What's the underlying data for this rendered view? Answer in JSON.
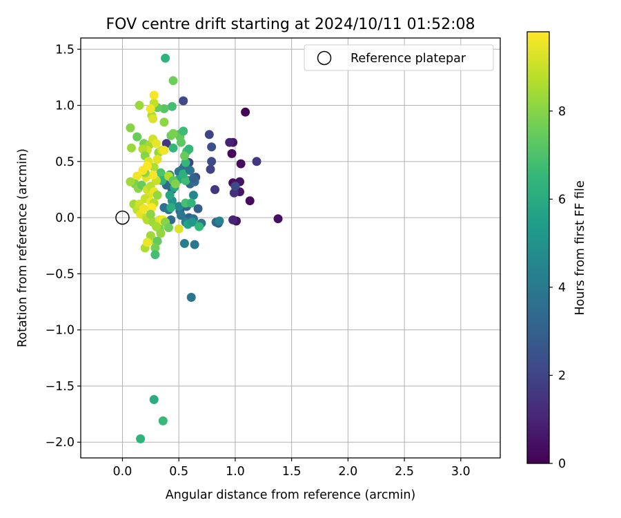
{
  "chart_data": {
    "type": "scatter",
    "title": "FOV centre drift starting at 2024/10/11 01:52:08",
    "xlabel": "Angular distance from reference (arcmin)",
    "ylabel": "Rotation from reference (arcmin)",
    "xlim": [
      -0.37,
      3.35
    ],
    "ylim": [
      -2.14,
      1.6
    ],
    "xticks": [
      0.0,
      0.5,
      1.0,
      1.5,
      2.0,
      2.5,
      3.0
    ],
    "xtick_labels": [
      "0.0",
      "0.5",
      "1.0",
      "1.5",
      "2.0",
      "2.5",
      "3.0"
    ],
    "yticks": [
      1.5,
      1.0,
      0.5,
      0.0,
      -0.5,
      -1.0,
      -1.5,
      -2.0
    ],
    "ytick_labels": [
      "1.5",
      "1.0",
      "0.5",
      "0.0",
      "−0.5",
      "−1.0",
      "−1.5",
      "−2.0"
    ],
    "grid": true,
    "legend": {
      "position": "upper-right",
      "entries": [
        {
          "label": "Reference platepar",
          "marker": "open-circle",
          "x": 0.0,
          "y": 0.0
        }
      ]
    },
    "colorbar": {
      "label": "Hours from first FF file",
      "colormap": "viridis",
      "range": [
        0,
        9.8
      ],
      "ticks": [
        0,
        2,
        4,
        6,
        8
      ],
      "tick_labels": [
        "0",
        "2",
        "4",
        "6",
        "8"
      ]
    },
    "points": [
      [
        1.09,
        0.94,
        0.1
      ],
      [
        0.98,
        0.67,
        0.5
      ],
      [
        0.95,
        0.67,
        0.9
      ],
      [
        1.05,
        0.48,
        0.3
      ],
      [
        0.97,
        0.57,
        0.2
      ],
      [
        1.19,
        0.5,
        1.6
      ],
      [
        1.38,
        -0.01,
        0.4
      ],
      [
        1.13,
        0.15,
        0.3
      ],
      [
        1.04,
        0.23,
        0.6
      ],
      [
        1.04,
        0.32,
        0.5
      ],
      [
        0.98,
        0.31,
        0.4
      ],
      [
        1.01,
        -0.03,
        0.5
      ],
      [
        0.98,
        -0.02,
        1.0
      ],
      [
        0.99,
        0.22,
        1.3
      ],
      [
        1.0,
        0.28,
        2.2
      ],
      [
        0.82,
        0.25,
        1.6
      ],
      [
        0.78,
        0.43,
        1.9
      ],
      [
        0.79,
        0.5,
        2.2
      ],
      [
        0.77,
        0.74,
        2.0
      ],
      [
        0.79,
        0.63,
        2.4
      ],
      [
        0.54,
        1.04,
        2.1
      ],
      [
        0.39,
        0.66,
        1.5
      ],
      [
        0.59,
        0.49,
        2.0
      ],
      [
        0.55,
        0.46,
        2.5
      ],
      [
        0.65,
        0.36,
        2.3
      ],
      [
        0.6,
        0.3,
        3.2
      ],
      [
        0.64,
        0.32,
        3.5
      ],
      [
        0.58,
        0.33,
        3.4
      ],
      [
        0.53,
        0.43,
        3.6
      ],
      [
        0.5,
        0.41,
        3.9
      ],
      [
        0.45,
        0.27,
        2.8
      ],
      [
        0.44,
        0.25,
        3.0
      ],
      [
        0.39,
        0.29,
        3.3
      ],
      [
        0.51,
        0.06,
        3.2
      ],
      [
        0.57,
        0.1,
        3.4
      ],
      [
        0.59,
        0.0,
        3.0
      ],
      [
        0.61,
        -0.03,
        3.1
      ],
      [
        0.63,
        -0.01,
        3.6
      ],
      [
        0.67,
        0.08,
        2.9
      ],
      [
        0.7,
        -0.05,
        3.7
      ],
      [
        0.56,
        -0.04,
        4.3
      ],
      [
        0.52,
        0.02,
        3.9
      ],
      [
        0.43,
        -0.02,
        3.4
      ],
      [
        0.37,
        0.09,
        3.6
      ],
      [
        0.41,
        0.07,
        3.8
      ],
      [
        0.85,
        -0.05,
        2.6
      ],
      [
        0.83,
        -0.04,
        3.3
      ],
      [
        0.86,
        -0.03,
        4.3
      ],
      [
        0.63,
        0.2,
        4.5
      ],
      [
        0.64,
        -0.24,
        3.9
      ],
      [
        0.55,
        -0.23,
        4.2
      ],
      [
        0.61,
        -0.71,
        3.8
      ],
      [
        0.58,
        -0.06,
        5.6
      ],
      [
        0.62,
        -0.04,
        5.2
      ],
      [
        0.68,
        -0.08,
        6.5
      ],
      [
        0.44,
        0.15,
        5.0
      ],
      [
        0.5,
        0.1,
        4.6
      ],
      [
        0.38,
        0.36,
        4.9
      ],
      [
        0.42,
        0.38,
        5.1
      ],
      [
        0.46,
        0.27,
        5.8
      ],
      [
        0.5,
        0.34,
        5.8
      ],
      [
        0.56,
        0.33,
        6.7
      ],
      [
        0.54,
        0.39,
        6.2
      ],
      [
        0.56,
        0.49,
        6.4
      ],
      [
        0.57,
        0.59,
        6.9
      ],
      [
        0.59,
        0.61,
        6.5
      ],
      [
        0.52,
        0.67,
        7.3
      ],
      [
        0.55,
        0.55,
        7.5
      ],
      [
        0.5,
        0.74,
        7.0
      ],
      [
        0.51,
        0.72,
        7.4
      ],
      [
        0.54,
        0.77,
        6.7
      ],
      [
        0.45,
        0.62,
        6.5
      ],
      [
        0.43,
        0.73,
        7.6
      ],
      [
        0.45,
        0.75,
        7.8
      ],
      [
        0.44,
        0.99,
        6.8
      ],
      [
        0.45,
        1.22,
        7.6
      ],
      [
        0.38,
        1.42,
        6.3
      ],
      [
        0.37,
        0.97,
        7.2
      ],
      [
        0.31,
        0.98,
        7.4
      ],
      [
        0.37,
        0.85,
        8.1
      ],
      [
        0.28,
        1.02,
        8.9
      ],
      [
        0.26,
        0.91,
        8.6
      ],
      [
        0.27,
        0.88,
        9.3
      ],
      [
        0.25,
        0.97,
        9.6
      ],
      [
        0.28,
        1.09,
        9.7
      ],
      [
        0.15,
        1.0,
        8.3
      ],
      [
        0.07,
        0.8,
        8.0
      ],
      [
        0.13,
        0.72,
        7.5
      ],
      [
        0.19,
        0.66,
        7.8
      ],
      [
        0.24,
        0.65,
        8.4
      ],
      [
        0.27,
        0.7,
        9.1
      ],
      [
        0.3,
        0.66,
        9.5
      ],
      [
        0.32,
        0.58,
        8.2
      ],
      [
        0.35,
        0.6,
        9.2
      ],
      [
        0.37,
        0.6,
        9.6
      ],
      [
        0.22,
        0.6,
        9.1
      ],
      [
        0.18,
        0.61,
        8.7
      ],
      [
        0.08,
        0.62,
        8.3
      ],
      [
        0.2,
        0.55,
        8.0
      ],
      [
        0.23,
        0.5,
        9.3
      ],
      [
        0.28,
        0.45,
        8.6
      ],
      [
        0.31,
        0.52,
        9.4
      ],
      [
        0.34,
        0.4,
        7.0
      ],
      [
        0.35,
        0.33,
        6.4
      ],
      [
        0.41,
        0.37,
        8.7
      ],
      [
        0.45,
        0.33,
        7.3
      ],
      [
        0.47,
        0.3,
        7.9
      ],
      [
        0.3,
        0.33,
        9.0
      ],
      [
        0.27,
        0.38,
        9.7
      ],
      [
        0.21,
        0.36,
        9.4
      ],
      [
        0.2,
        0.4,
        8.1
      ],
      [
        0.13,
        0.37,
        9.6
      ],
      [
        0.11,
        0.3,
        7.8
      ],
      [
        0.07,
        0.32,
        8.4
      ],
      [
        0.14,
        0.26,
        8.1
      ],
      [
        0.17,
        0.29,
        7.5
      ],
      [
        0.22,
        0.25,
        9.1
      ],
      [
        0.25,
        0.28,
        8.8
      ],
      [
        0.28,
        0.23,
        9.5
      ],
      [
        0.31,
        0.2,
        8.2
      ],
      [
        0.23,
        0.18,
        9.3
      ],
      [
        0.2,
        0.17,
        9.0
      ],
      [
        0.25,
        0.14,
        9.5
      ],
      [
        0.28,
        0.13,
        8.7
      ],
      [
        0.26,
        0.09,
        9.8
      ],
      [
        0.1,
        0.12,
        8.4
      ],
      [
        0.13,
        0.07,
        8.8
      ],
      [
        0.15,
        0.12,
        9.1
      ],
      [
        0.16,
        0.03,
        9.4
      ],
      [
        0.19,
        0.08,
        9.6
      ],
      [
        0.21,
        0.0,
        9.0
      ],
      [
        0.22,
        -0.02,
        8.7
      ],
      [
        0.25,
        0.03,
        8.1
      ],
      [
        0.27,
        -0.04,
        8.3
      ],
      [
        0.33,
        -0.02,
        9.3
      ],
      [
        0.36,
        -0.02,
        9.6
      ],
      [
        0.38,
        -0.04,
        8.0
      ],
      [
        0.41,
        -0.09,
        7.6
      ],
      [
        0.33,
        -0.1,
        7.9
      ],
      [
        0.3,
        -0.08,
        8.5
      ],
      [
        0.34,
        -0.14,
        8.2
      ],
      [
        0.27,
        -0.2,
        9.1
      ],
      [
        0.25,
        -0.16,
        8.4
      ],
      [
        0.31,
        -0.21,
        7.4
      ],
      [
        0.29,
        -0.27,
        7.7
      ],
      [
        0.29,
        -0.33,
        6.8
      ],
      [
        0.2,
        -0.27,
        8.6
      ],
      [
        0.22,
        -0.22,
        9.5
      ],
      [
        0.5,
        -0.1,
        9.3
      ],
      [
        0.56,
        0.13,
        6.9
      ],
      [
        0.61,
        0.13,
        6.4
      ],
      [
        0.28,
        -1.62,
        6.0
      ],
      [
        0.36,
        -1.81,
        6.6
      ],
      [
        0.16,
        -1.97,
        6.3
      ],
      [
        0.42,
        0.2,
        5.7
      ],
      [
        0.43,
        0.09,
        6.1
      ],
      [
        0.63,
        0.35,
        3.1
      ],
      [
        0.6,
        0.42,
        3.8
      ],
      [
        0.22,
        0.46,
        9.8
      ],
      [
        0.18,
        0.42,
        9.7
      ]
    ]
  }
}
